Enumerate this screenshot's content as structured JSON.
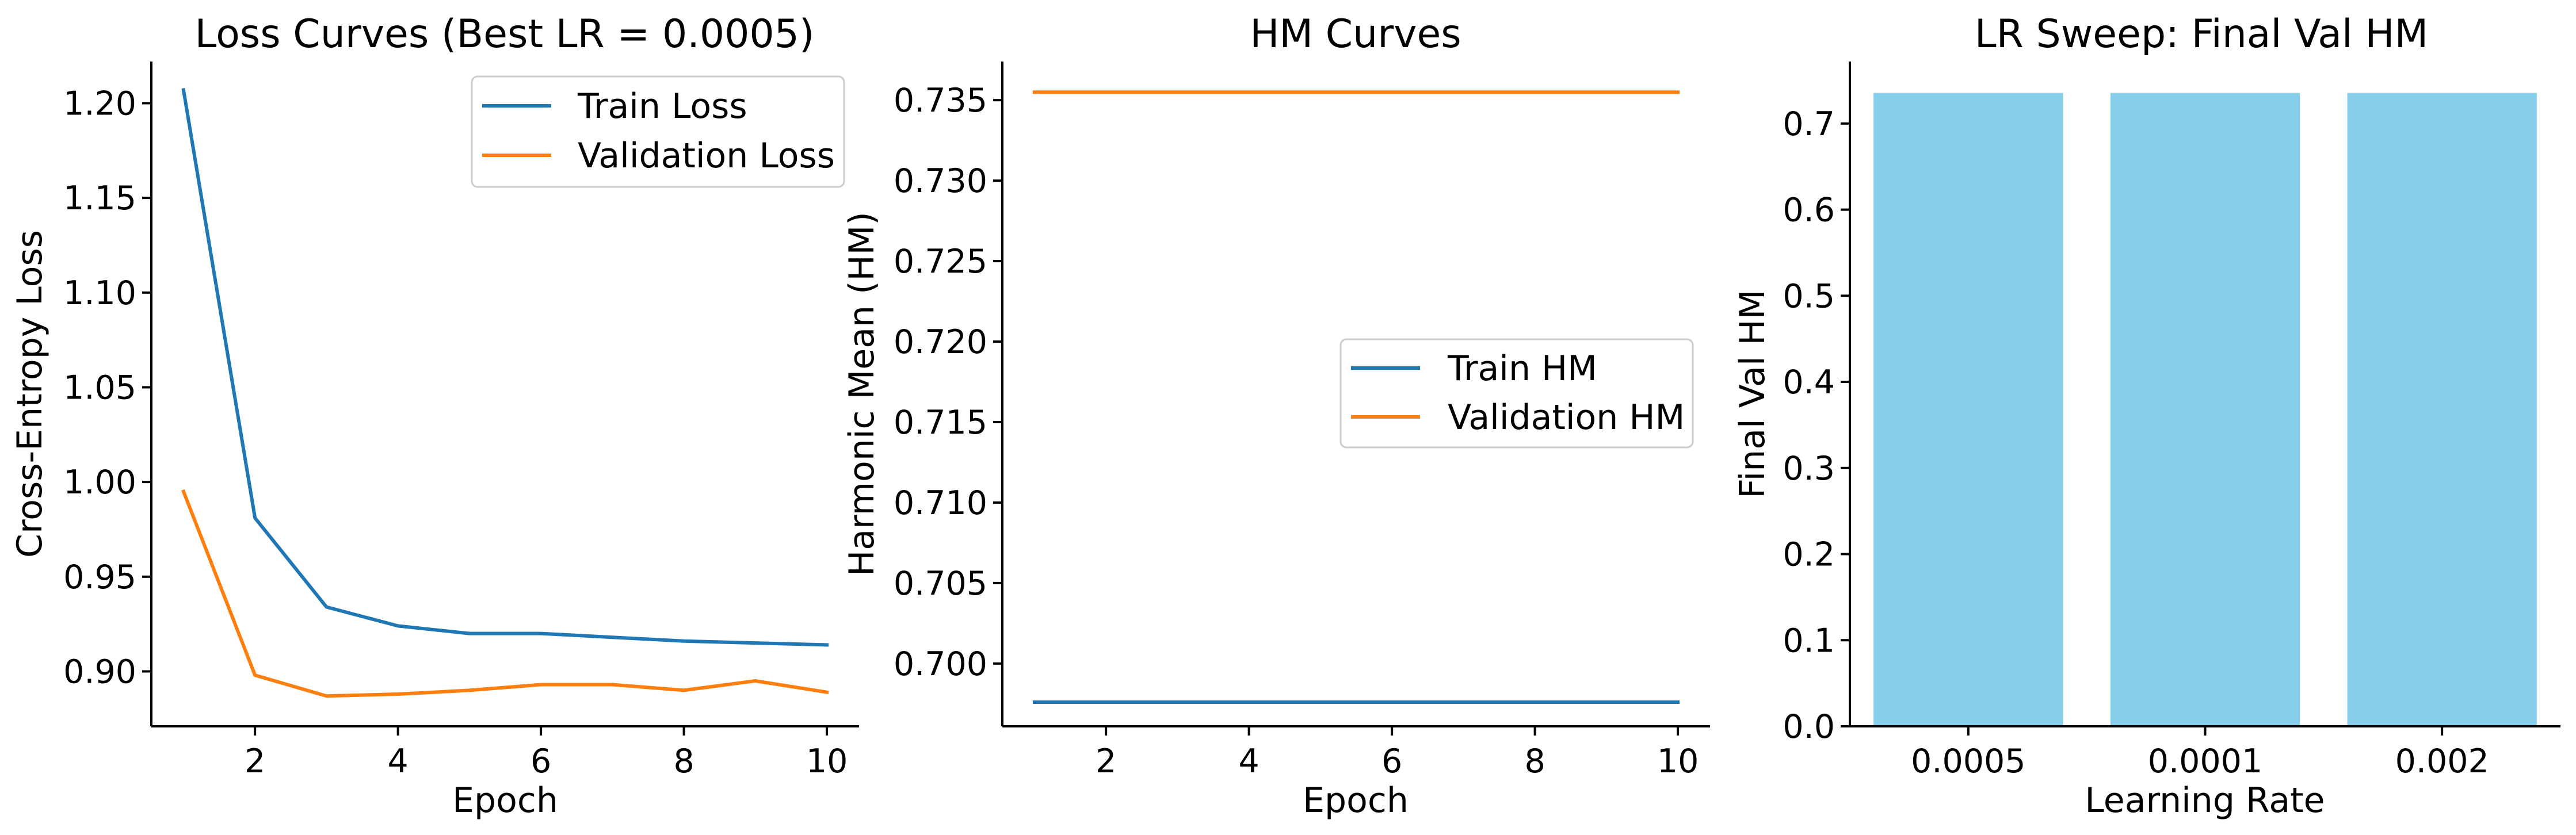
{
  "chart_data": [
    {
      "type": "line",
      "title": "Loss Curves (Best LR = 0.0005)",
      "xlabel": "Epoch",
      "ylabel": "Cross-Entropy Loss",
      "x": [
        1,
        2,
        3,
        4,
        5,
        6,
        7,
        8,
        9,
        10
      ],
      "xlim": [
        0.55,
        10.45
      ],
      "ylim": [
        0.871,
        1.222
      ],
      "xticks": [
        2,
        4,
        6,
        8,
        10
      ],
      "yticks": [
        0.9,
        0.95,
        1.0,
        1.05,
        1.1,
        1.15,
        1.2
      ],
      "ytick_labels": [
        "0.90",
        "0.95",
        "1.00",
        "1.05",
        "1.10",
        "1.15",
        "1.20"
      ],
      "legend": "upper right",
      "grid": false,
      "series": [
        {
          "name": "Train Loss",
          "color": "#1f77b4",
          "values": [
            1.207,
            0.981,
            0.934,
            0.924,
            0.92,
            0.92,
            0.918,
            0.916,
            0.915,
            0.914
          ]
        },
        {
          "name": "Validation Loss",
          "color": "#ff7f0e",
          "values": [
            0.995,
            0.898,
            0.887,
            0.888,
            0.89,
            0.893,
            0.893,
            0.89,
            0.895,
            0.889
          ]
        }
      ]
    },
    {
      "type": "line",
      "title": "HM Curves",
      "xlabel": "Epoch",
      "ylabel": "Harmonic Mean (HM)",
      "x": [
        1,
        2,
        3,
        4,
        5,
        6,
        7,
        8,
        9,
        10
      ],
      "xlim": [
        0.55,
        10.45
      ],
      "ylim": [
        0.6961,
        0.7374
      ],
      "xticks": [
        2,
        4,
        6,
        8,
        10
      ],
      "yticks": [
        0.7,
        0.705,
        0.71,
        0.715,
        0.72,
        0.725,
        0.73,
        0.735
      ],
      "ytick_labels": [
        "0.700",
        "0.705",
        "0.710",
        "0.715",
        "0.720",
        "0.725",
        "0.730",
        "0.735"
      ],
      "legend": "center right",
      "grid": false,
      "series": [
        {
          "name": "Train HM",
          "color": "#1f77b4",
          "values": [
            0.6976,
            0.6976,
            0.6976,
            0.6976,
            0.6976,
            0.6976,
            0.6976,
            0.6976,
            0.6976,
            0.6976
          ]
        },
        {
          "name": "Validation HM",
          "color": "#ff7f0e",
          "values": [
            0.7355,
            0.7355,
            0.7355,
            0.7355,
            0.7355,
            0.7355,
            0.7355,
            0.7355,
            0.7355,
            0.7355
          ]
        }
      ]
    },
    {
      "type": "bar",
      "title": "LR Sweep: Final Val HM",
      "xlabel": "Learning Rate",
      "ylabel": "Final Val HM",
      "categories": [
        "0.0005",
        "0.0001",
        "0.002"
      ],
      "values": [
        0.7355,
        0.7355,
        0.7355
      ],
      "ylim": [
        0,
        0.772
      ],
      "yticks": [
        0.0,
        0.1,
        0.2,
        0.3,
        0.4,
        0.5,
        0.6,
        0.7
      ],
      "ytick_labels": [
        "0.0",
        "0.1",
        "0.2",
        "0.3",
        "0.4",
        "0.5",
        "0.6",
        "0.7"
      ],
      "color": "#87ceeb",
      "grid": false
    }
  ]
}
